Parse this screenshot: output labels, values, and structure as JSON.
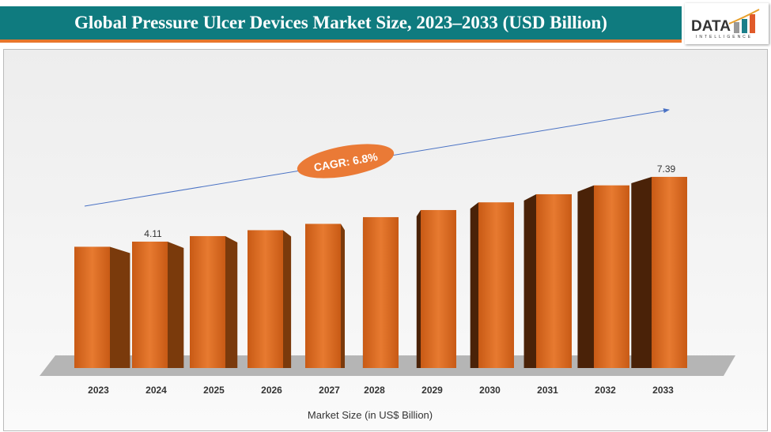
{
  "title": "Global Pressure Ulcer Devices Market Size, 2023–2033 (USD Billion)",
  "logo": {
    "main": "DATA",
    "sub": "INTELLIGENCE"
  },
  "chart_data": {
    "type": "bar",
    "title": "Global Pressure Ulcer Devices Market Size, 2023–2033 (USD Billion)",
    "categories": [
      "2023",
      "2024",
      "2025",
      "2026",
      "2027",
      "2028",
      "2029",
      "2030",
      "2031",
      "2032",
      "2033"
    ],
    "values": [
      3.85,
      4.11,
      4.39,
      4.69,
      5.01,
      5.35,
      5.71,
      6.1,
      6.51,
      6.96,
      7.39
    ],
    "data_labels": {
      "2024": "4.11",
      "2033": "7.39"
    },
    "xlabel": "Market Size (in US$ Billion)",
    "annotation": "CAGR: 6.8%",
    "bar_color": "#d9661f",
    "grid": false
  }
}
